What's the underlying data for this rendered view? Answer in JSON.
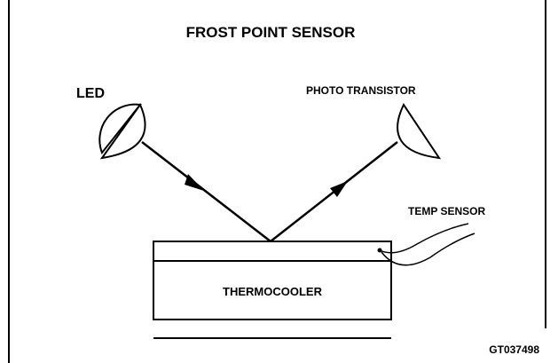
{
  "title": "FROST POINT SENSOR",
  "labels": {
    "led": "LED",
    "photo_transistor": "PHOTO TRANSISTOR",
    "temp_sensor": "TEMP SENSOR",
    "thermocooler": "THERMOCOOLER"
  },
  "figure_id": "GT037498"
}
